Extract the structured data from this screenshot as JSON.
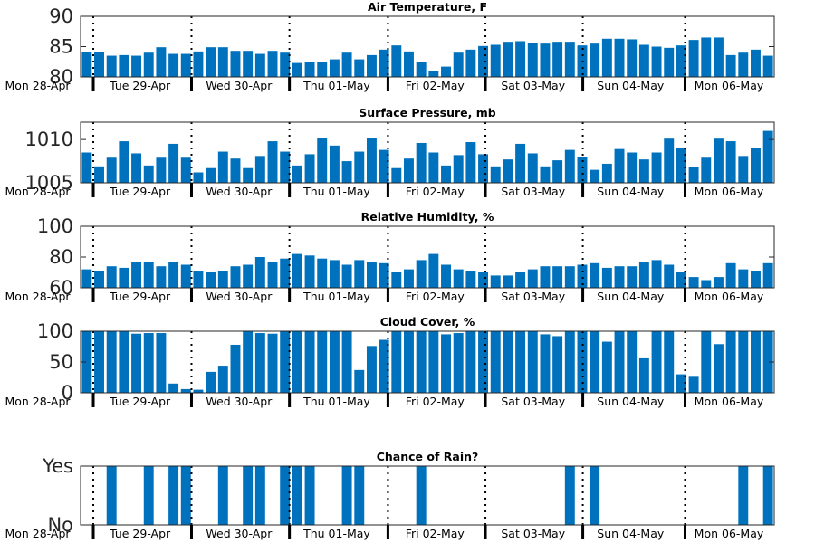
{
  "colors": {
    "bar": "#0072bd",
    "axis": "#262626",
    "daymark": "#000000"
  },
  "day_labels": [
    "Mon 28-Apr",
    "Tue 29-Apr",
    "Wed 30-Apr",
    "Thu 01-May",
    "Fri 02-May",
    "Sat 03-May",
    "Sun 04-May",
    "Mon 06-May"
  ],
  "chart_data": [
    {
      "type": "bar",
      "title": "Air Temperature, F",
      "ylim": [
        80,
        90
      ],
      "yticks": [
        80,
        85,
        90
      ],
      "values": [
        84.1,
        84.1,
        83.5,
        83.6,
        83.5,
        84.0,
        84.9,
        83.8,
        83.8,
        84.2,
        84.9,
        84.9,
        84.3,
        84.3,
        83.8,
        84.3,
        84.0,
        82.3,
        82.4,
        82.4,
        82.9,
        84.0,
        82.9,
        83.6,
        84.5,
        85.2,
        84.2,
        82.5,
        81.0,
        81.7,
        84.0,
        84.5,
        85.1,
        85.3,
        85.8,
        85.9,
        85.6,
        85.5,
        85.8,
        85.8,
        85.2,
        85.5,
        86.3,
        86.3,
        86.2,
        85.3,
        85.0,
        84.8,
        85.2,
        86.1,
        86.5,
        86.5,
        83.6,
        84.0,
        84.5,
        83.5
      ],
      "grid": false
    },
    {
      "type": "bar",
      "title": "Surface Pressure, mb",
      "ylim": [
        1005,
        1012
      ],
      "yticks": [
        1005,
        1010
      ],
      "values": [
        1008.5,
        1006.9,
        1007.9,
        1009.8,
        1008.4,
        1007.0,
        1007.9,
        1009.5,
        1007.9,
        1006.2,
        1006.7,
        1008.6,
        1007.8,
        1006.7,
        1008.1,
        1009.8,
        1008.6,
        1007.0,
        1008.3,
        1010.2,
        1009.3,
        1007.5,
        1008.6,
        1010.2,
        1008.8,
        1006.7,
        1007.8,
        1009.6,
        1008.5,
        1007.0,
        1008.2,
        1009.7,
        1008.3,
        1006.9,
        1007.7,
        1009.5,
        1008.4,
        1006.9,
        1007.6,
        1008.8,
        1008.0,
        1006.5,
        1007.2,
        1008.9,
        1008.5,
        1007.7,
        1008.5,
        1010.1,
        1009.0,
        1006.8,
        1007.9,
        1010.1,
        1009.8,
        1008.1,
        1009.0,
        1011.0
      ],
      "grid": false
    },
    {
      "type": "bar",
      "title": "Relative Humidity, %",
      "ylim": [
        60,
        100
      ],
      "yticks": [
        60,
        80,
        100
      ],
      "values": [
        72,
        71,
        74,
        73,
        77,
        77,
        74,
        77,
        75,
        71,
        70,
        71,
        74,
        75,
        80,
        77,
        79,
        82,
        81,
        79,
        78,
        75,
        78,
        77,
        76,
        70,
        72,
        78,
        82,
        75,
        72,
        71,
        70,
        68,
        68,
        70,
        72,
        74,
        74,
        74,
        75,
        76,
        73,
        74,
        74,
        77,
        78,
        75,
        70,
        67,
        65,
        67,
        76,
        72,
        71,
        76
      ],
      "grid": false
    },
    {
      "type": "bar",
      "title": "Cloud Cover, %",
      "ylim": [
        0,
        100
      ],
      "yticks": [
        0,
        50,
        100
      ],
      "values": [
        100,
        100,
        100,
        100,
        96,
        97,
        97,
        15,
        6,
        5,
        34,
        44,
        78,
        100,
        97,
        96,
        100,
        100,
        100,
        100,
        100,
        100,
        37,
        76,
        86,
        100,
        100,
        100,
        100,
        95,
        97,
        100,
        100,
        100,
        100,
        100,
        100,
        95,
        92,
        100,
        100,
        100,
        83,
        100,
        100,
        56,
        100,
        100,
        30,
        26,
        100,
        79,
        100,
        100,
        100,
        100
      ],
      "grid": false
    },
    {
      "type": "bar",
      "title": "Chance of Rain?",
      "ylim": [
        0,
        1
      ],
      "yticks": [
        0,
        1
      ],
      "ytick_labels": [
        "No",
        "Yes"
      ],
      "values": [
        0,
        0,
        1,
        0,
        0,
        1,
        0,
        1,
        1,
        0,
        0,
        1,
        0,
        1,
        1,
        0,
        1,
        1,
        1,
        0,
        0,
        1,
        1,
        0,
        0,
        0,
        0,
        1,
        0,
        0,
        0,
        0,
        0,
        0,
        0,
        0,
        0,
        0,
        0,
        1,
        0,
        1,
        0,
        0,
        0,
        0,
        0,
        0,
        0,
        0,
        0,
        0,
        0,
        1,
        0,
        1
      ],
      "grid": false
    }
  ]
}
